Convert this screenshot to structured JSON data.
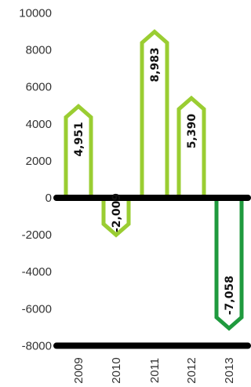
{
  "chart_data": {
    "type": "bar",
    "categories": [
      "2009",
      "2010",
      "2011",
      "2012",
      "2013"
    ],
    "values": [
      4951,
      -2009,
      8983,
      5390,
      -7058
    ],
    "data_labels": [
      "4,951",
      "-2,009",
      "8,983",
      "5,390",
      "-7,058"
    ],
    "y_ticks": [
      "10000",
      "8000",
      "6000",
      "4000",
      "2000",
      "0",
      "-2000",
      "-4000",
      "-6000",
      "-8000"
    ],
    "ylim": [
      -8000,
      10000
    ],
    "title": "",
    "xlabel": "",
    "ylabel": "",
    "grid": false,
    "colors": {
      "positive": "#9ACD32",
      "negative_2010": "#9ACD32",
      "negative_2013": "#1F9A3E",
      "axis": "#000000"
    }
  }
}
